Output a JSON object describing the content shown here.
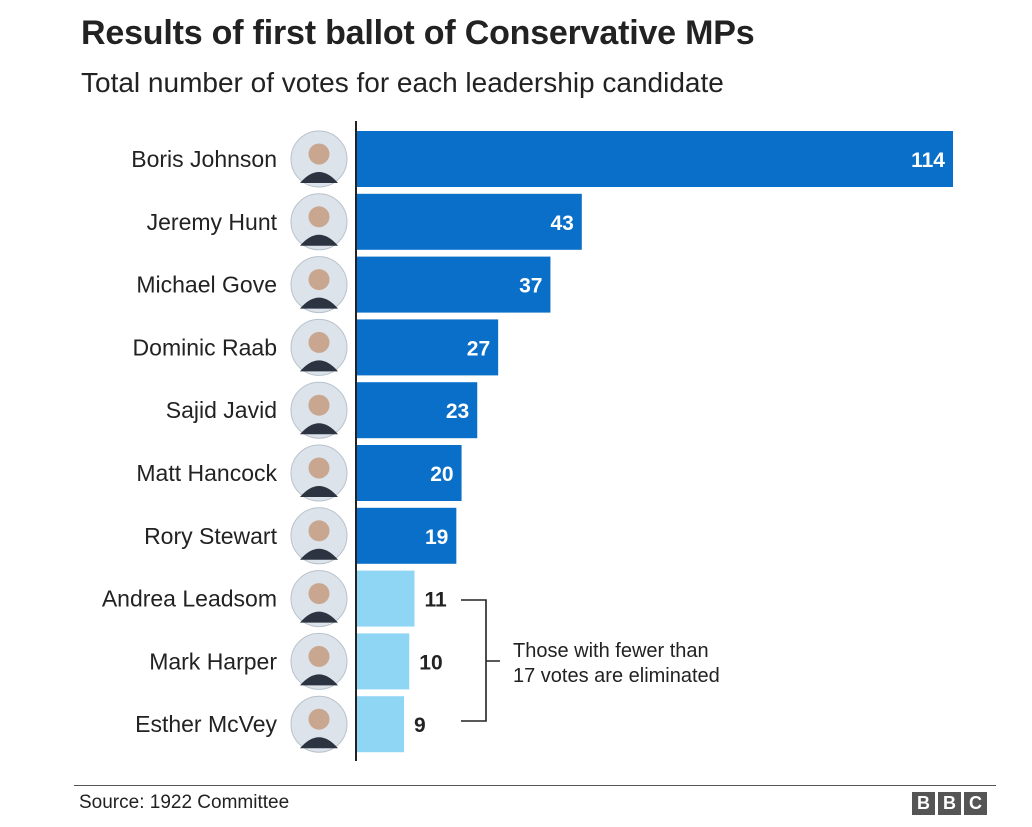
{
  "header": {
    "title": "Results of first ballot of Conservative MPs",
    "subtitle": "Total number of votes for each leadership candidate"
  },
  "chart_data": {
    "type": "bar",
    "orientation": "horizontal",
    "title": "Results of first ballot of Conservative MPs",
    "subtitle": "Total number of votes for each leadership candidate",
    "categories": [
      "Boris Johnson",
      "Jeremy Hunt",
      "Michael Gove",
      "Dominic Raab",
      "Sajid Javid",
      "Matt Hancock",
      "Rory Stewart",
      "Andrea Leadsom",
      "Mark Harper",
      "Esther McVey"
    ],
    "values": [
      114,
      43,
      37,
      27,
      23,
      20,
      19,
      11,
      10,
      9
    ],
    "eliminated": [
      false,
      false,
      false,
      false,
      false,
      false,
      false,
      true,
      true,
      true
    ],
    "xlim": [
      0,
      114
    ],
    "grid": false,
    "annotation": {
      "lines": [
        "Those with fewer than",
        "17 votes are eliminated"
      ]
    }
  },
  "colors": {
    "qualified": "#0a6fc8",
    "eliminated": "#8fd6f4",
    "axis": "#222222",
    "value_on_bar": "#ffffff",
    "value_outside": "#222222"
  },
  "icons": {
    "candidate_photo": "portrait-icon"
  },
  "footer": {
    "source": "Source: 1922 Committee",
    "logo_letters": [
      "B",
      "B",
      "C"
    ]
  }
}
